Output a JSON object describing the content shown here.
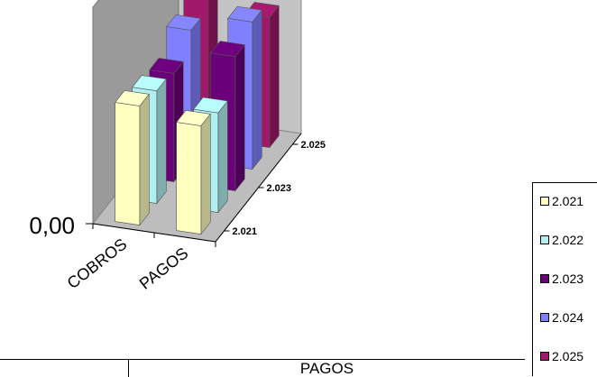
{
  "chart_data": {
    "type": "bar",
    "title": "",
    "categories": [
      "COBROS",
      "PAGOS"
    ],
    "depth_labels": [
      "2.021",
      "2.023",
      "2.025"
    ],
    "y_tick_label": "0,00",
    "series": [
      {
        "name": "2.021",
        "color": "#FFFFC0",
        "values": [
          0.55,
          0.5
        ]
      },
      {
        "name": "2.022",
        "color": "#B0F0F0",
        "values": [
          0.52,
          0.46
        ]
      },
      {
        "name": "2.023",
        "color": "#6A007A",
        "values": [
          0.5,
          0.62
        ]
      },
      {
        "name": "2.024",
        "color": "#8080FF",
        "values": [
          0.6,
          0.68
        ]
      },
      {
        "name": "2.025",
        "color": "#A0186A",
        "values": [
          0.88,
          0.6
        ]
      }
    ]
  },
  "table": {
    "header_pagos": "PAGOS"
  }
}
